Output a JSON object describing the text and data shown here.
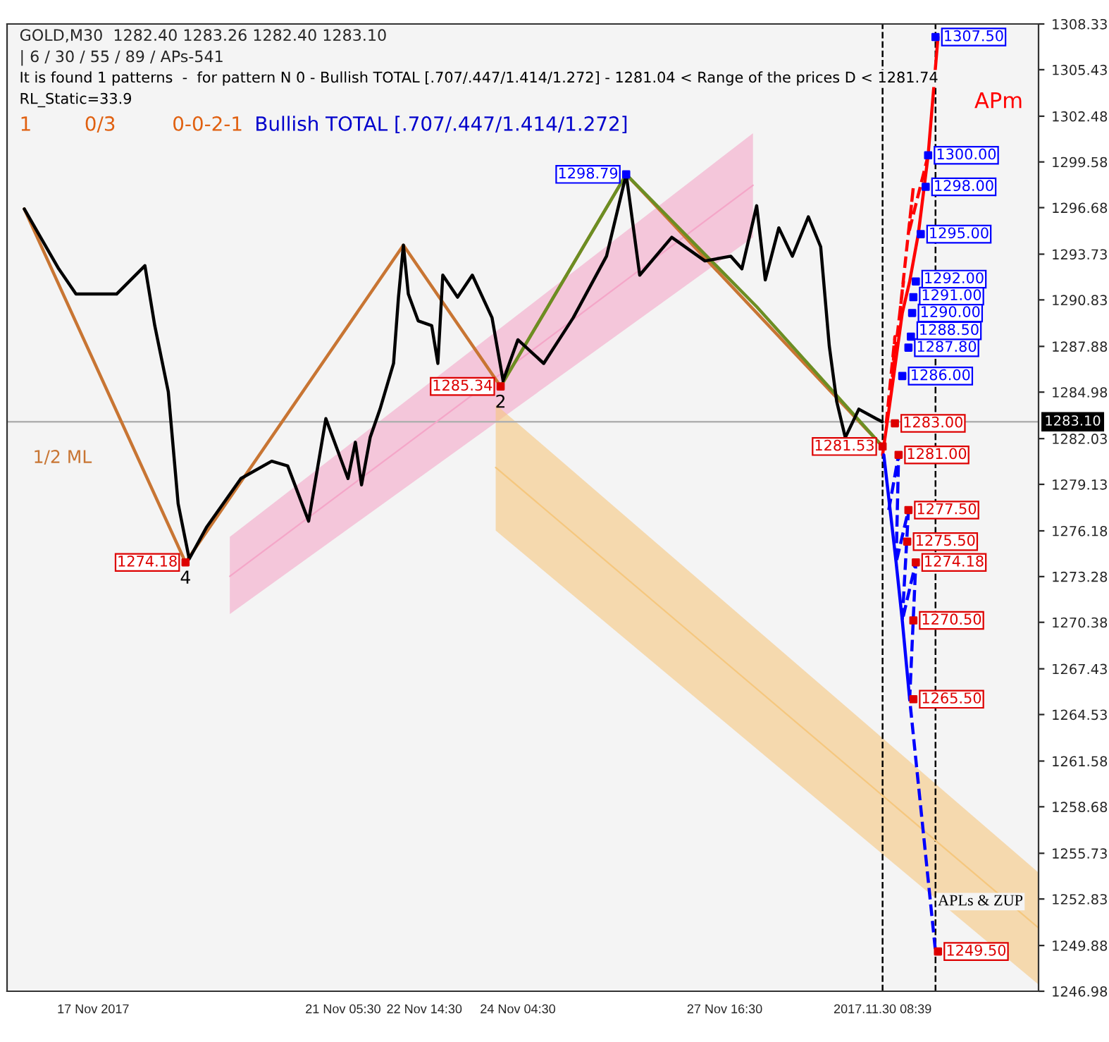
{
  "chart_data": {
    "type": "line",
    "title": "GOLD,M30  1282.40 1283.26 1282.40 1283.10",
    "subtitle": "| 6 / 30 / 55 / 89 / APs-541",
    "annotations": [
      "It is found 1 patterns  -  for pattern N 0 - Bullish TOTAL [.707/.447/1.414/1.272] - 1281.04 < Range of the prices D < 1281.74",
      "RL_Static=33.9",
      "1",
      "0/3",
      "0-0-2-1",
      "Bullish TOTAL [.707/.447/1.414/1.272]",
      "APm",
      "APLs & ZUP",
      "1/2 ML",
      {
        "text": "2",
        "x": "2017-11-23T21:30",
        "y": 1285.34
      },
      {
        "text": "4",
        "x": "2017-11-18T13:30",
        "y": 1274.18
      }
    ],
    "xlim": [
      "2017-11-15T13:00",
      "2017-12-03T00:00"
    ],
    "xticks": [
      {
        "value": "2017-11-17T00:00",
        "label": "17 Nov 2017"
      },
      {
        "value": "2017-11-21T05:30",
        "label": "21 Nov 05:30"
      },
      {
        "value": "2017-11-22T14:30",
        "label": "22 Nov 14:30"
      },
      {
        "value": "2017-11-24T04:30",
        "label": "24 Nov 04:30"
      },
      {
        "value": "2017-11-27T16:30",
        "label": "27 Nov 16:30"
      },
      {
        "value": "2017-11-30T08:39",
        "label": "2017.11.30 08:39"
      }
    ],
    "ylim": [
      1246.98,
      1308.33
    ],
    "yticks": [
      1246.98,
      1249.88,
      1252.83,
      1255.73,
      1258.68,
      1261.58,
      1264.53,
      1267.43,
      1270.38,
      1273.28,
      1276.18,
      1279.13,
      1282.03,
      1284.98,
      1287.88,
      1290.83,
      1293.73,
      1296.68,
      1299.58,
      1302.48,
      1305.43,
      1308.33
    ],
    "grid": false,
    "legend": false,
    "ref_lines": [
      {
        "axis": "y",
        "value": 1283.1,
        "label": "1283.10",
        "color": "#b0b0b0",
        "line_style": "solid"
      },
      {
        "axis": "x",
        "value": "2017-11-30T08:39",
        "color": "#000000",
        "line_style": "dashed"
      },
      {
        "axis": "x",
        "value": "2017-12-01T06:09",
        "color": "#000000",
        "line_style": "dashed"
      }
    ],
    "series": [
      {
        "color": "#f4a6c8",
        "x": [
          "2017-11-19T07:30",
          "2017-11-28T04:00"
        ],
        "values": [
          1273.3,
          1298.1
        ],
        "lower": [
          1270.9,
          1294.8
        ],
        "upper": [
          1275.8,
          1301.4
        ],
        "line_style": "solid"
      },
      {
        "color": "#f5c77e",
        "x": [
          "2017-11-23T19:30",
          "2017-12-03T00:00"
        ],
        "values": [
          1280.2,
          1251.0
        ],
        "lower": [
          1276.2,
          1247.4
        ],
        "upper": [
          1284.2,
          1254.5
        ],
        "line_style": "solid"
      },
      {
        "color": "#c87533",
        "x": [
          "2017-11-15T20:00",
          "2017-11-18T13:30",
          "2017-11-22T06:00",
          "2017-11-23T21:30",
          "2017-11-26T00:30",
          "2017-11-30T08:39"
        ],
        "values": [
          1296.6,
          1274.18,
          1294.3,
          1285.34,
          1298.79,
          1281.53
        ],
        "line_style": "solid"
      },
      {
        "color": "#6b8e23",
        "x": [
          "2017-11-23T21:30",
          "2017-11-26T00:30",
          "2017-11-28T05:30",
          "2017-11-30T08:39"
        ],
        "values": [
          1285.34,
          1298.79,
          1290.4,
          1281.53
        ],
        "line_style": "solid"
      },
      {
        "color": "#000000",
        "x": [
          "2017-11-15T20:00",
          "2017-11-16T10:00",
          "2017-11-16T17:00",
          "2017-11-17T09:30",
          "2017-11-17T21:00",
          "2017-11-18T01:00",
          "2017-11-18T06:30",
          "2017-11-18T10:30",
          "2017-11-18T15:00",
          "2017-11-18T22:00",
          "2017-11-19T12:00",
          "2017-11-20T00:30",
          "2017-11-20T07:00",
          "2017-11-20T15:30",
          "2017-11-20T22:30",
          "2017-11-21T07:30",
          "2017-11-21T10:30",
          "2017-11-21T13:00",
          "2017-11-21T16:30",
          "2017-11-21T20:30",
          "2017-11-22T02:00",
          "2017-11-22T04:00",
          "2017-11-22T06:00",
          "2017-11-22T08:00",
          "2017-11-22T12:00",
          "2017-11-22T17:30",
          "2017-11-22T20:00",
          "2017-11-22T22:00",
          "2017-11-23T04:00",
          "2017-11-23T10:00",
          "2017-11-23T18:00",
          "2017-11-23T22:30",
          "2017-11-24T04:30",
          "2017-11-24T15:00",
          "2017-11-25T03:00",
          "2017-11-25T16:30",
          "2017-11-26T00:30",
          "2017-11-26T06:00",
          "2017-11-26T19:00",
          "2017-11-27T08:30",
          "2017-11-27T19:00",
          "2017-11-27T23:30",
          "2017-11-28T05:30",
          "2017-11-28T09:00",
          "2017-11-28T14:30",
          "2017-11-28T20:00",
          "2017-11-29T02:30",
          "2017-11-29T07:30",
          "2017-11-29T11:00",
          "2017-11-29T14:00",
          "2017-11-29T17:30",
          "2017-11-29T23:00",
          "2017-11-30T06:00",
          "2017-11-30T08:30"
        ],
        "values": [
          1296.6,
          1292.8,
          1291.2,
          1291.2,
          1293.0,
          1289.2,
          1285.0,
          1277.9,
          1274.4,
          1276.4,
          1279.5,
          1280.6,
          1280.3,
          1276.8,
          1283.3,
          1279.5,
          1281.8,
          1279.1,
          1282.1,
          1283.9,
          1286.8,
          1291.0,
          1294.3,
          1291.2,
          1289.5,
          1289.2,
          1286.8,
          1292.4,
          1291.0,
          1292.4,
          1289.7,
          1285.7,
          1288.3,
          1286.8,
          1289.7,
          1293.6,
          1298.8,
          1292.4,
          1294.8,
          1293.3,
          1293.6,
          1292.8,
          1296.8,
          1292.1,
          1295.4,
          1293.6,
          1296.1,
          1294.2,
          1287.9,
          1284.4,
          1282.1,
          1283.9,
          1283.3,
          1283.1
        ],
        "line_style": "solid"
      },
      {
        "color": "#ff0000",
        "x": [
          "2017-11-30T08:39",
          "2017-11-30T13:09",
          "2017-11-30T16:39",
          "2017-11-30T19:39",
          "2017-11-30T23:09",
          "2017-12-01T03:09",
          "2017-12-01T07:09"
        ],
        "values": [
          1281.0,
          1286.0,
          1290.0,
          1292.0,
          1295.0,
          1300.0,
          1307.5
        ],
        "line_style": "solid"
      },
      {
        "color": "#ff0000",
        "x": [
          "2017-11-30T10:09",
          "2017-11-30T13:39",
          "2017-11-30T12:39",
          "2017-11-30T17:09",
          "2017-11-30T15:39",
          "2017-11-30T21:09",
          "2017-11-30T19:09",
          "2017-12-01T03:09"
        ],
        "values": [
          1283.0,
          1288.5,
          1286.0,
          1292.0,
          1290.0,
          1298.0,
          1295.0,
          1300.0
        ],
        "line_style": "dashed"
      },
      {
        "color": "#0000ff",
        "x": [
          "2017-11-30T09:09",
          "2017-11-30T14:09",
          "2017-11-30T16:39",
          "2017-11-30T19:39"
        ],
        "values": [
          1281.0,
          1274.18,
          1270.5,
          1265.5
        ],
        "line_style": "solid"
      },
      {
        "color": "#0000ff",
        "x": [
          "2017-11-30T11:09",
          "2017-11-30T15:09",
          "2017-11-30T14:09",
          "2017-11-30T19:09",
          "2017-11-30T16:39",
          "2017-11-30T22:09",
          "2017-11-30T19:39",
          "2017-12-01T06:09"
        ],
        "values": [
          1277.5,
          1281.0,
          1274.18,
          1277.5,
          1270.5,
          1274.18,
          1265.5,
          1249.5
        ],
        "line_style": "dashed"
      },
      {
        "type": "scatter",
        "color": "#0000ff",
        "x": [
          "2017-12-01T06:09",
          "2017-12-01T03:09",
          "2017-12-01T02:09",
          "2017-12-01T00:09",
          "2017-11-30T22:09",
          "2017-11-30T21:09",
          "2017-11-30T20:39",
          "2017-11-30T20:09",
          "2017-11-30T19:09",
          "2017-11-30T16:39",
          "2017-11-26T00:30"
        ],
        "values": [
          1307.5,
          1300.0,
          1298.0,
          1295.0,
          1292.0,
          1291.0,
          1290.0,
          1288.5,
          1287.8,
          1286.0,
          1298.79
        ],
        "value_labels": [
          "1307.50",
          "1300.00",
          "1298.00",
          "1295.00",
          "1292.00",
          "1291.00",
          "1290.00",
          "1288.50",
          "1287.80",
          "1286.00",
          "1298.79"
        ]
      },
      {
        "type": "scatter",
        "color": "#dd0000",
        "x": [
          "2017-11-30T13:39",
          "2017-11-30T15:09",
          "2017-11-30T19:09",
          "2017-11-30T18:39",
          "2017-11-30T22:09",
          "2017-11-30T21:09",
          "2017-11-30T21:09",
          "2017-12-01T07:09",
          "2017-11-23T21:30",
          "2017-11-30T08:39",
          "2017-11-18T13:30"
        ],
        "values": [
          1283.0,
          1281.0,
          1277.5,
          1275.5,
          1274.18,
          1270.5,
          1265.5,
          1249.5,
          1285.34,
          1281.53,
          1274.18
        ],
        "value_labels": [
          "1283.00",
          "1281.00",
          "1277.50",
          "1275.50",
          "1274.18",
          "1270.50",
          "1265.50",
          "1249.50",
          "1285.34",
          "1281.53",
          "1274.18"
        ]
      }
    ]
  }
}
